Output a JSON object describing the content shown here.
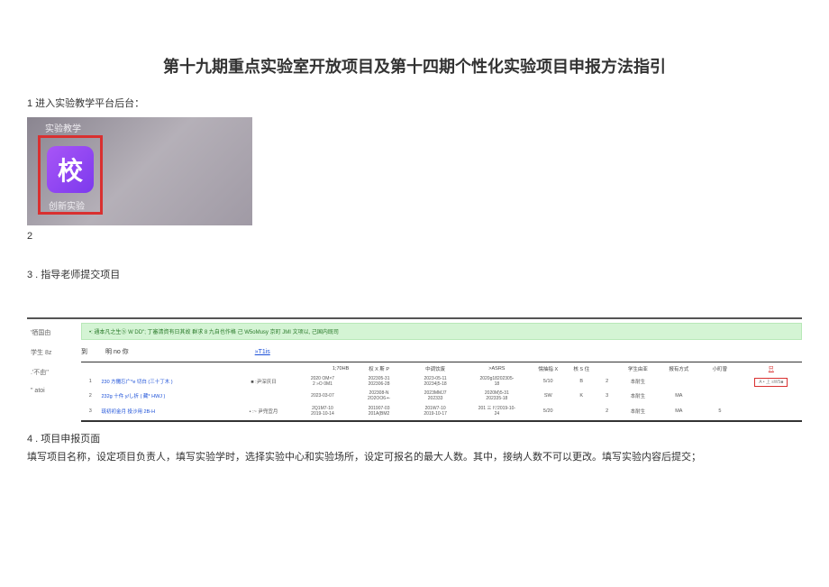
{
  "title": "第十九期重点实验室开放项目及第十四期个性化实验项目申报方法指引",
  "step1": "1 进入实验教学平台后台：",
  "screenshot1": {
    "top_label": "实验教学",
    "icon_char": "校",
    "bottom_label": "创新实验"
  },
  "step2_num": "2",
  "step3": "3 . 指导老师提交项目",
  "sidebar": {
    "l1": "'牺国由",
    "l2": "学生 8z",
    "l3": ".'不由''",
    "l4": "\" atoi"
  },
  "green_bar": "•: 通本凡之生⑤ W DD\"; 丁審清資有日其故 群求 8 九自也作格 己 W5oMusy 京町 JMI 文项以, 己国内既司",
  "search": {
    "label": "到",
    "input": "明 no 你",
    "link": "»T1is"
  },
  "table": {
    "sub_header_right": "  1;70HB",
    "headers": [
      "",
      "",
      "权 X 斯 P",
      "中调饮废",
      ">ASRS",
      "懦抽指 X",
      "核 S 住",
      "",
      "学生由亚",
      "报有方式",
      "小町曽",
      "只"
    ],
    "rows": [
      {
        "idx": "1",
        "name": "230 方攤忘广*e 切白 (三十丁木 )",
        "responsible": "■ :尹深庆日",
        "d1a": "2020 OM×7",
        "d1b": "2 »O 0M1",
        "d2a": "202305-31",
        "d2b": "202306-28",
        "d3a": "2023-05-11",
        "d3b": "20234|5-18",
        "d4a": "2020g18202305-",
        "d4b": "18",
        "wx": "5/10",
        "hs": "B",
        "n": "2",
        "sy": "本耐生",
        "bm": "",
        "ct": "",
        "action_red": "A • 上 sW5■"
      },
      {
        "idx": "2",
        "name": "232g 十仵 y/し折 ( 藏* HWJ )",
        "responsible": "",
        "d1a": "2023-03-07",
        "d1b": "",
        "d2a": "202308-N",
        "d2b": "2O2OO6-•-",
        "d3a": "2023MMJ7",
        "d3b": "202333",
        "d4a": "2020M)5-31",
        "d4b": "202335-18",
        "wx": "SW",
        "hs": "K",
        "n": "3",
        "sy": "本耐生",
        "bm": "MA",
        "ct": "",
        "action_red": ""
      },
      {
        "idx": "3",
        "name": "琉初初金月 投沙用 2B-H",
        "responsible": "• :~ 尹兜宜月",
        "d1a": "2Q1M7-10",
        "d1b": "2019-10-14",
        "d2a": "201907-03",
        "d2b": "201A(BM2",
        "d3a": "201W7-10",
        "d3b": "2019-10-17",
        "d4a": "201 三 I▽2019-10-",
        "d4b": "24",
        "wx": "5/20",
        "hs": "",
        "n": "2",
        "sy": "本耐生",
        "bm": "MA",
        "ct": "5",
        "action_red": ""
      }
    ]
  },
  "step4": "4 . 项目申报页面",
  "desc4": "填写项目名称，设定项目负责人，填写实验学时，选择实验中心和实验场所，设定可报名的最大人数。其中，接纳人数不可以更改。填写实验内容后提交；"
}
